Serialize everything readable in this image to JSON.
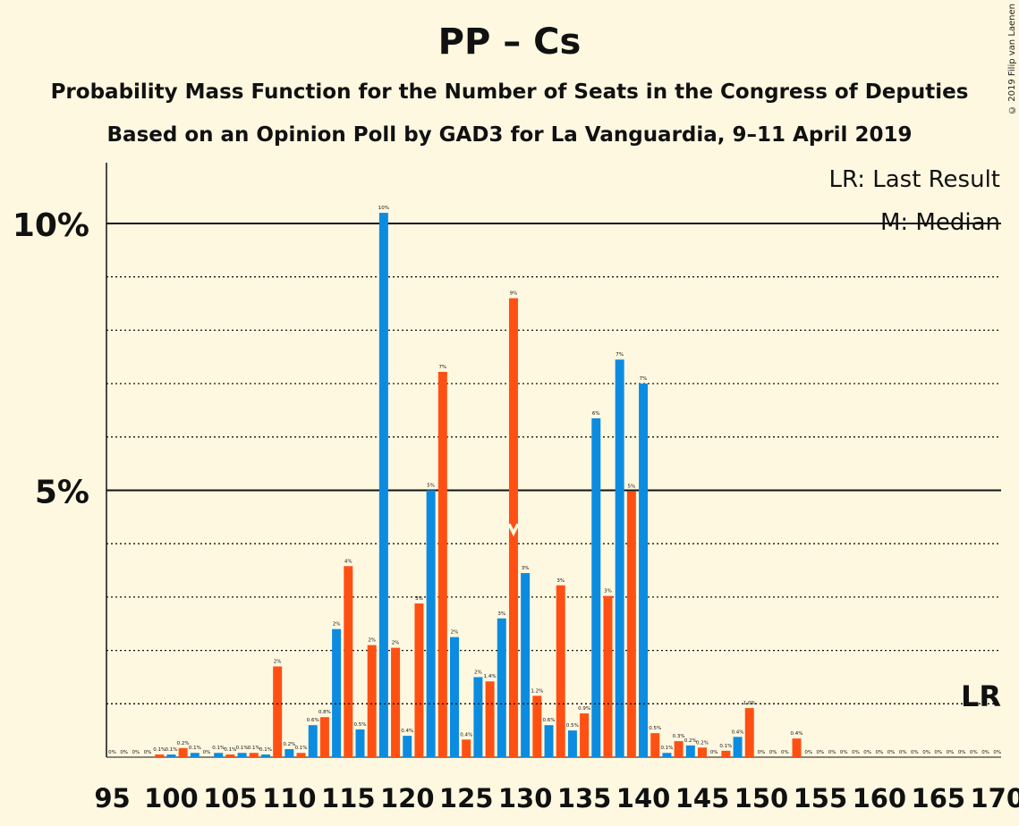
{
  "title": "PP – Cs",
  "subtitle1": "Probability Mass Function for the Number of Seats in the Congress of Deputies",
  "subtitle2": "Based on an Opinion Poll by GAD3 for La Vanguardia, 9–11 April 2019",
  "copyright": "© 2019 Filip van Laenen",
  "legend": {
    "last_result": "LR: Last Result",
    "median": "M: Median"
  },
  "colors": {
    "background": "#FFF8E1",
    "pp": "#0C8CE0",
    "cs": "#FF5013",
    "text": "#111111"
  },
  "chart_data": {
    "type": "bar",
    "xlim": [
      95,
      170
    ],
    "ylim": [
      0,
      11
    ],
    "ylabel_ticks": [
      {
        "value": 5,
        "label": "5%"
      },
      {
        "value": 10,
        "label": "10%"
      }
    ],
    "x_ticks": [
      95,
      100,
      105,
      110,
      115,
      120,
      125,
      130,
      135,
      140,
      145,
      150,
      155,
      160,
      165,
      170
    ],
    "last_result": {
      "x": 169,
      "label": "LR"
    },
    "median": {
      "x": 129,
      "label": "M"
    },
    "series": [
      {
        "name": "PP",
        "color": "#0C8CE0",
        "points": [
          {
            "x": 96,
            "y": 0,
            "label": "0%"
          },
          {
            "x": 98,
            "y": 0,
            "label": "0%"
          },
          {
            "x": 100,
            "y": 0.05,
            "label": "0.1%"
          },
          {
            "x": 102,
            "y": 0.08,
            "label": "0.1%"
          },
          {
            "x": 104,
            "y": 0.08,
            "label": "0.1%"
          },
          {
            "x": 106,
            "y": 0.08,
            "label": "0.1%"
          },
          {
            "x": 108,
            "y": 0.05,
            "label": "0.1%"
          },
          {
            "x": 110,
            "y": 0.15,
            "label": "0.2%"
          },
          {
            "x": 112,
            "y": 0.6,
            "label": "0.6%"
          },
          {
            "x": 114,
            "y": 2.4,
            "label": "2%"
          },
          {
            "x": 116,
            "y": 0.52,
            "label": "0.5%"
          },
          {
            "x": 118,
            "y": 10.2,
            "label": "10%"
          },
          {
            "x": 120,
            "y": 0.4,
            "label": "0.4%"
          },
          {
            "x": 122,
            "y": 5.0,
            "label": "5%"
          },
          {
            "x": 124,
            "y": 2.25,
            "label": "2%"
          },
          {
            "x": 126,
            "y": 1.5,
            "label": "2%"
          },
          {
            "x": 128,
            "y": 2.6,
            "label": "3%"
          },
          {
            "x": 130,
            "y": 3.45,
            "label": "3%"
          },
          {
            "x": 132,
            "y": 0.6,
            "label": "0.6%"
          },
          {
            "x": 134,
            "y": 0.5,
            "label": "0.5%"
          },
          {
            "x": 136,
            "y": 6.35,
            "label": "6%"
          },
          {
            "x": 138,
            "y": 7.45,
            "label": "7%"
          },
          {
            "x": 140,
            "y": 7.0,
            "label": "7%"
          },
          {
            "x": 142,
            "y": 0.08,
            "label": "0.1%"
          },
          {
            "x": 144,
            "y": 0.22,
            "label": "0.2%"
          },
          {
            "x": 146,
            "y": 0,
            "label": "0%"
          },
          {
            "x": 148,
            "y": 0.38,
            "label": "0.4%"
          },
          {
            "x": 150,
            "y": 0,
            "label": "0%"
          },
          {
            "x": 152,
            "y": 0,
            "label": "0%"
          },
          {
            "x": 154,
            "y": 0,
            "label": "0%"
          },
          {
            "x": 156,
            "y": 0,
            "label": "0%"
          },
          {
            "x": 158,
            "y": 0,
            "label": "0%"
          },
          {
            "x": 160,
            "y": 0,
            "label": "0%"
          },
          {
            "x": 162,
            "y": 0,
            "label": "0%"
          },
          {
            "x": 164,
            "y": 0,
            "label": "0%"
          },
          {
            "x": 166,
            "y": 0,
            "label": "0%"
          },
          {
            "x": 168,
            "y": 0,
            "label": "0%"
          },
          {
            "x": 170,
            "y": 0,
            "label": "0%"
          }
        ]
      },
      {
        "name": "Cs",
        "color": "#FF5013",
        "points": [
          {
            "x": 95,
            "y": 0,
            "label": "0%"
          },
          {
            "x": 97,
            "y": 0,
            "label": "0%"
          },
          {
            "x": 99,
            "y": 0.05,
            "label": "0.1%"
          },
          {
            "x": 101,
            "y": 0.17,
            "label": "0.2%"
          },
          {
            "x": 103,
            "y": 0,
            "label": "0%"
          },
          {
            "x": 105,
            "y": 0.05,
            "label": "0.1%"
          },
          {
            "x": 107,
            "y": 0.08,
            "label": "0.1%"
          },
          {
            "x": 109,
            "y": 1.7,
            "label": "2%"
          },
          {
            "x": 111,
            "y": 0.08,
            "label": "0.1%"
          },
          {
            "x": 113,
            "y": 0.75,
            "label": "0.8%"
          },
          {
            "x": 115,
            "y": 3.58,
            "label": "4%"
          },
          {
            "x": 117,
            "y": 2.1,
            "label": "2%"
          },
          {
            "x": 119,
            "y": 2.05,
            "label": "2%"
          },
          {
            "x": 121,
            "y": 2.88,
            "label": "3%"
          },
          {
            "x": 123,
            "y": 7.22,
            "label": "7%"
          },
          {
            "x": 125,
            "y": 0.33,
            "label": "0.4%"
          },
          {
            "x": 127,
            "y": 1.42,
            "label": "1.4%"
          },
          {
            "x": 129,
            "y": 8.6,
            "label": "9%"
          },
          {
            "x": 131,
            "y": 1.15,
            "label": "1.2%"
          },
          {
            "x": 133,
            "y": 3.22,
            "label": "3%"
          },
          {
            "x": 135,
            "y": 0.82,
            "label": "0.9%"
          },
          {
            "x": 137,
            "y": 3.02,
            "label": "3%"
          },
          {
            "x": 139,
            "y": 4.98,
            "label": "5%"
          },
          {
            "x": 141,
            "y": 0.45,
            "label": "0.5%"
          },
          {
            "x": 143,
            "y": 0.3,
            "label": "0.3%"
          },
          {
            "x": 145,
            "y": 0.18,
            "label": "0.2%"
          },
          {
            "x": 147,
            "y": 0.12,
            "label": "0.1%"
          },
          {
            "x": 149,
            "y": 0.92,
            "label": "1.0%"
          },
          {
            "x": 151,
            "y": 0,
            "label": "0%"
          },
          {
            "x": 153,
            "y": 0.35,
            "label": "0.4%"
          },
          {
            "x": 155,
            "y": 0,
            "label": "0%"
          },
          {
            "x": 157,
            "y": 0,
            "label": "0%"
          },
          {
            "x": 159,
            "y": 0,
            "label": "0%"
          },
          {
            "x": 161,
            "y": 0,
            "label": "0%"
          },
          {
            "x": 163,
            "y": 0,
            "label": "0%"
          },
          {
            "x": 165,
            "y": 0,
            "label": "0%"
          },
          {
            "x": 167,
            "y": 0,
            "label": "0%"
          },
          {
            "x": 169,
            "y": 0,
            "label": "0%"
          }
        ]
      }
    ]
  }
}
